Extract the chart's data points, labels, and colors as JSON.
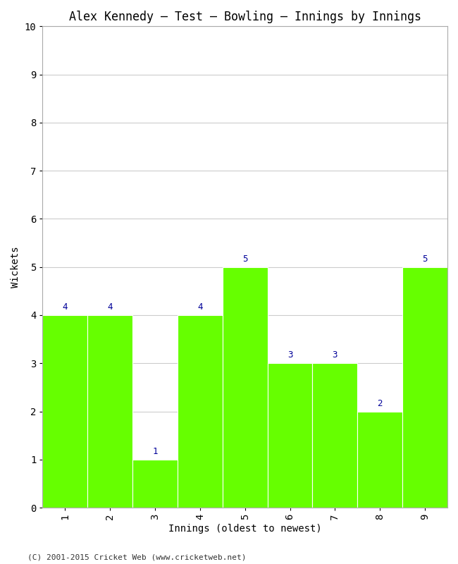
{
  "title": "Alex Kennedy – Test – Bowling – Innings by Innings",
  "xlabel": "Innings (oldest to newest)",
  "ylabel": "Wickets",
  "categories": [
    1,
    2,
    3,
    4,
    5,
    6,
    7,
    8,
    9
  ],
  "values": [
    4,
    4,
    1,
    4,
    5,
    3,
    3,
    2,
    5
  ],
  "bar_color": "#66ff00",
  "bar_edge_color": "#ffffff",
  "label_color": "#000099",
  "background_color": "#ffffff",
  "ylim": [
    0,
    10
  ],
  "yticks": [
    0,
    1,
    2,
    3,
    4,
    5,
    6,
    7,
    8,
    9,
    10
  ],
  "xticks": [
    1,
    2,
    3,
    4,
    5,
    6,
    7,
    8,
    9
  ],
  "title_fontsize": 12,
  "axis_label_fontsize": 10,
  "tick_fontsize": 10,
  "value_label_fontsize": 9,
  "footer_text": "(C) 2001-2015 Cricket Web (www.cricketweb.net)",
  "footer_fontsize": 8,
  "grid_color": "#cccccc",
  "font_family": "monospace",
  "bar_width": 1.0,
  "xlim_left": 0.5,
  "xlim_right": 9.5
}
